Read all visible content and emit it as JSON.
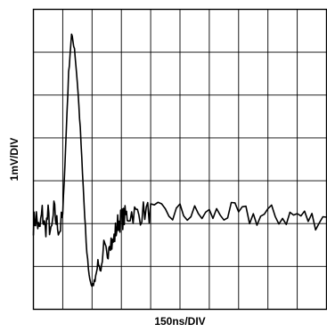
{
  "chart_data": {
    "type": "line",
    "xlabel": "150ns/DIV",
    "ylabel": "1mV/DIV",
    "x_divisions": 10,
    "y_divisions": 7,
    "grid": true,
    "units": {
      "x": "div",
      "y": "div"
    },
    "xlim": [
      0,
      10
    ],
    "ylim": [
      -2,
      5
    ],
    "series": [
      {
        "x": [
          0,
          0.1,
          0.2,
          0.3,
          0.4,
          0.5,
          0.6,
          0.7,
          0.8,
          0.9,
          1.0,
          1.1,
          1.2,
          1.3,
          1.4,
          1.5,
          1.6,
          1.7,
          1.8,
          1.9,
          2.0,
          2.1,
          2.2,
          2.3,
          2.4,
          2.5,
          2.6,
          2.7,
          2.8,
          2.9,
          3.0,
          3.1,
          3.2,
          3.4,
          3.6,
          3.8,
          4.0,
          4.5,
          5.0,
          5.5,
          6.0,
          6.5,
          7.0,
          7.5,
          8.0,
          8.5,
          9.0,
          9.5,
          10.0
        ],
        "y": [
          0.0,
          0.15,
          -0.2,
          0.25,
          -0.15,
          0.2,
          -0.3,
          0.3,
          0.0,
          -0.15,
          0.2,
          1.8,
          3.5,
          4.4,
          4.1,
          3.3,
          2.2,
          0.8,
          -0.5,
          -1.2,
          -1.5,
          -1.3,
          -0.9,
          -1.1,
          -0.6,
          -0.8,
          -0.3,
          -0.5,
          -0.2,
          0.05,
          0.1,
          0.15,
          0.2,
          0.25,
          0.2,
          0.3,
          0.25,
          0.2,
          0.25,
          0.2,
          0.2,
          0.25,
          0.2,
          0.15,
          0.2,
          0.15,
          0.2,
          0.1,
          0.15
        ]
      }
    ]
  }
}
